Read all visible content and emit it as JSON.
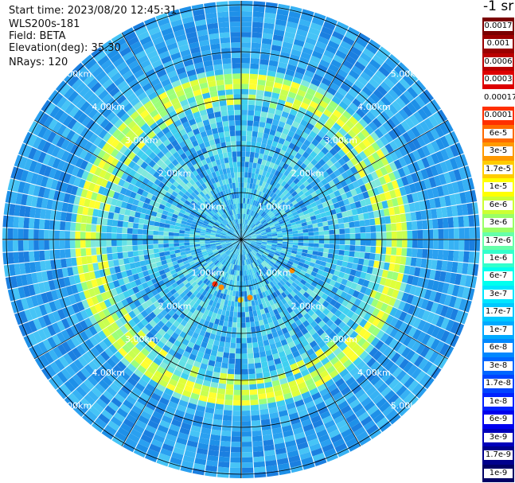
{
  "header": {
    "start_time": "Start time: 2023/08/20 12:45:31",
    "instrument": "WLS200s-181",
    "field": "Field: BETA",
    "elevation": "Elevation(deg): 35.30",
    "nrays": "NRays: 120"
  },
  "colorbar": {
    "title": "-1 sr",
    "labels": [
      "0.0017",
      "0.001",
      "0.0006",
      "0.0003",
      "0.00017",
      "0.0001",
      "6e-5",
      "3e-5",
      "1.7e-5",
      "1e-5",
      "6e-6",
      "3e-6",
      "1.7e-6",
      "1e-6",
      "6e-7",
      "3e-7",
      "1.7e-7",
      "1e-7",
      "6e-8",
      "3e-8",
      "1.7e-8",
      "1e-8",
      "6e-9",
      "3e-9",
      "1.7e-9",
      "1e-9"
    ],
    "colors": [
      "#7a0000",
      "#9a0000",
      "#bb0000",
      "#dd0000",
      "#ffffff",
      "#ff3000",
      "#ff6a00",
      "#ff9a00",
      "#ffcc00",
      "#ffff00",
      "#ccff33",
      "#99ff66",
      "#66ffaa",
      "#33ffcc",
      "#00ffee",
      "#00e6ff",
      "#00c8ff",
      "#00aaff",
      "#0088ff",
      "#0066ff",
      "#0044ff",
      "#0022ff",
      "#0000ee",
      "#0000bb",
      "#00008c",
      "#000066"
    ]
  },
  "ppi": {
    "ring_labels": [
      "1.00km",
      "2.00km",
      "3.00km",
      "4.00km",
      "5.00km"
    ],
    "rays": 120,
    "palette": {
      "bg": [
        "#1e90e8",
        "#2aa0f0",
        "#37b2f4",
        "#1b7fe0",
        "#46c4f6"
      ],
      "mid": [
        "#3fd0f0",
        "#62e0e6",
        "#32b8f0",
        "#80e8dc"
      ],
      "ring": [
        "#9cff7a",
        "#dfff3a",
        "#ffff30",
        "#c8ff50"
      ],
      "hot": [
        "#ff2a00",
        "#ff8c00",
        "#ffd000"
      ]
    }
  }
}
